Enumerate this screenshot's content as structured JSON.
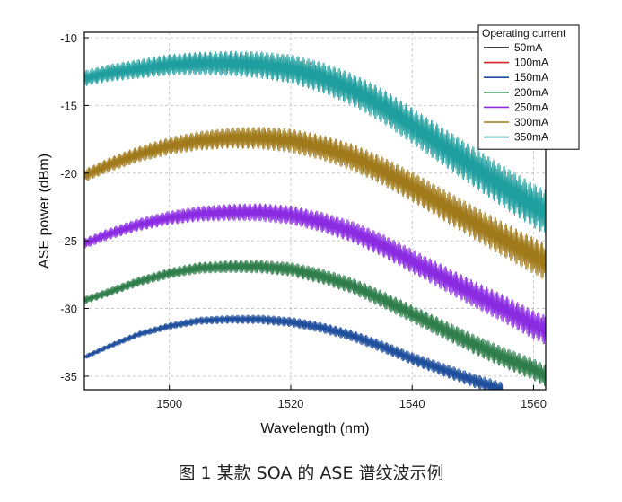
{
  "caption": "图 1 某款 SOA 的 ASE 谱纹波示例",
  "chart_data": {
    "type": "line",
    "title": "",
    "xlabel": "Wavelength (nm)",
    "ylabel": "ASE power (dBm)",
    "xlim": [
      1486,
      1562
    ],
    "ylim": [
      -36.0,
      -9.6
    ],
    "xticks": [
      1500,
      1520,
      1540,
      1560
    ],
    "yticks": [
      -10,
      -15,
      -20,
      -25,
      -30,
      -35
    ],
    "grid": true,
    "legend": {
      "title": "Operating current",
      "placement": "top-right"
    },
    "series": [
      {
        "name": "50mA",
        "color": "#000000",
        "visible_in_plot": false,
        "x": [],
        "y": []
      },
      {
        "name": "100mA",
        "color": "#d62728",
        "visible_in_plot": false,
        "x": [],
        "y": []
      },
      {
        "name": "150mA",
        "color": "#1f4e9c",
        "ripple_db": 0.4,
        "x": [
          1486,
          1490,
          1495,
          1500,
          1505,
          1510,
          1515,
          1520,
          1525,
          1530,
          1535,
          1540,
          1545,
          1550,
          1555
        ],
        "y": [
          -33.6,
          -32.8,
          -31.9,
          -31.3,
          -30.9,
          -30.8,
          -30.8,
          -31.0,
          -31.4,
          -32.0,
          -32.8,
          -33.7,
          -34.5,
          -35.3,
          -36.0
        ]
      },
      {
        "name": "200mA",
        "color": "#2e7d4a",
        "ripple_db": 0.6,
        "x": [
          1486,
          1490,
          1495,
          1500,
          1505,
          1510,
          1515,
          1520,
          1525,
          1530,
          1535,
          1540,
          1545,
          1550,
          1555,
          1560,
          1562
        ],
        "y": [
          -29.4,
          -28.8,
          -28.0,
          -27.4,
          -27.0,
          -26.9,
          -26.9,
          -27.1,
          -27.6,
          -28.3,
          -29.3,
          -30.4,
          -31.5,
          -32.6,
          -33.6,
          -34.5,
          -35.0
        ]
      },
      {
        "name": "250mA",
        "color": "#8a2be2",
        "ripple_db": 0.8,
        "x": [
          1486,
          1490,
          1495,
          1500,
          1505,
          1510,
          1515,
          1520,
          1525,
          1530,
          1535,
          1540,
          1545,
          1550,
          1555,
          1560,
          1562
        ],
        "y": [
          -25.2,
          -24.5,
          -23.8,
          -23.3,
          -23.0,
          -22.9,
          -22.9,
          -23.1,
          -23.6,
          -24.3,
          -25.3,
          -26.5,
          -27.7,
          -28.9,
          -30.0,
          -31.2,
          -31.6
        ]
      },
      {
        "name": "300mA",
        "color": "#a07a1a",
        "ripple_db": 1.0,
        "x": [
          1486,
          1490,
          1495,
          1500,
          1505,
          1510,
          1515,
          1520,
          1525,
          1530,
          1535,
          1540,
          1545,
          1550,
          1555,
          1560,
          1562
        ],
        "y": [
          -20.2,
          -19.4,
          -18.6,
          -18.0,
          -17.6,
          -17.4,
          -17.4,
          -17.6,
          -18.1,
          -18.8,
          -19.8,
          -21.0,
          -22.3,
          -23.6,
          -24.9,
          -26.1,
          -26.6
        ]
      },
      {
        "name": "350mA",
        "color": "#1e9e9e",
        "ripple_db": 1.2,
        "x": [
          1486,
          1490,
          1495,
          1500,
          1505,
          1510,
          1515,
          1520,
          1525,
          1530,
          1535,
          1540,
          1545,
          1550,
          1555,
          1560,
          1562
        ],
        "y": [
          -13.0,
          -12.6,
          -12.3,
          -12.0,
          -11.9,
          -11.9,
          -12.0,
          -12.3,
          -12.9,
          -13.8,
          -15.0,
          -16.5,
          -18.0,
          -19.5,
          -21.0,
          -22.4,
          -22.9
        ]
      }
    ]
  }
}
